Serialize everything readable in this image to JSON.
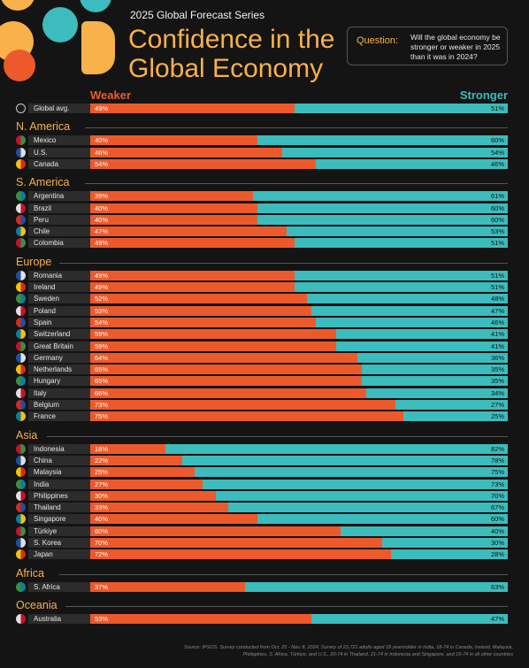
{
  "header": {
    "series": "2025 Global Forecast Series",
    "title_line1": "Confidence in the",
    "title_line2": "Global Economy",
    "question_label": "Question:",
    "question_text": "Will the global economy be stronger or weaker in 2025 than it was in 2024?"
  },
  "legend": {
    "weaker": "Weaker",
    "stronger": "Stronger"
  },
  "colors": {
    "weaker": "#ec5a2c",
    "stronger": "#3cbcbc",
    "accent": "#f9b14a",
    "background": "#141414"
  },
  "source": "Source: IPSOS. Survey conducted from Oct. 25 - Nov. 8, 2024. Survey of 23,721 adults aged 18 years/older in India, 18-74 in Canada, Ireland, Malaysia, Philippines, S. Africa, Türkiye, and U.S., 20-74 in Thailand, 21-74 in Indonesia and Singapore, and 16-74 in all other countries",
  "chart_data": {
    "type": "bar",
    "stacked": true,
    "orientation": "horizontal",
    "series": [
      {
        "name": "Weaker",
        "color": "#ec5a2c"
      },
      {
        "name": "Stronger",
        "color": "#3cbcbc"
      }
    ],
    "groups": [
      {
        "region": "",
        "rows": [
          {
            "country": "Global avg.",
            "icon": "globe-icon",
            "weaker": 49,
            "stronger": 51
          }
        ]
      },
      {
        "region": "N. America",
        "rows": [
          {
            "country": "Mexico",
            "weaker": 40,
            "stronger": 60
          },
          {
            "country": "U.S.",
            "weaker": 46,
            "stronger": 54
          },
          {
            "country": "Canada",
            "weaker": 54,
            "stronger": 46
          }
        ]
      },
      {
        "region": "S. America",
        "rows": [
          {
            "country": "Argentina",
            "weaker": 39,
            "stronger": 61
          },
          {
            "country": "Brazil",
            "weaker": 40,
            "stronger": 60
          },
          {
            "country": "Peru",
            "weaker": 40,
            "stronger": 60
          },
          {
            "country": "Chile",
            "weaker": 47,
            "stronger": 53
          },
          {
            "country": "Colombia",
            "weaker": 49,
            "stronger": 51
          }
        ]
      },
      {
        "region": "Europe",
        "rows": [
          {
            "country": "Romania",
            "weaker": 49,
            "stronger": 51
          },
          {
            "country": "Ireland",
            "weaker": 49,
            "stronger": 51
          },
          {
            "country": "Sweden",
            "weaker": 52,
            "stronger": 48
          },
          {
            "country": "Poland",
            "weaker": 53,
            "stronger": 47
          },
          {
            "country": "Spain",
            "weaker": 54,
            "stronger": 46
          },
          {
            "country": "Switzerland",
            "weaker": 59,
            "stronger": 41
          },
          {
            "country": "Great Britain",
            "weaker": 59,
            "stronger": 41
          },
          {
            "country": "Germany",
            "weaker": 64,
            "stronger": 36
          },
          {
            "country": "Netherlands",
            "weaker": 65,
            "stronger": 35
          },
          {
            "country": "Hungary",
            "weaker": 65,
            "stronger": 35
          },
          {
            "country": "Italy",
            "weaker": 66,
            "stronger": 34
          },
          {
            "country": "Belgium",
            "weaker": 73,
            "stronger": 27
          },
          {
            "country": "France",
            "weaker": 75,
            "stronger": 25
          }
        ]
      },
      {
        "region": "Asia",
        "rows": [
          {
            "country": "Indonesia",
            "weaker": 18,
            "stronger": 82
          },
          {
            "country": "China",
            "weaker": 22,
            "stronger": 78
          },
          {
            "country": "Malaysia",
            "weaker": 25,
            "stronger": 75
          },
          {
            "country": "India",
            "weaker": 27,
            "stronger": 73
          },
          {
            "country": "Philippines",
            "weaker": 30,
            "stronger": 70
          },
          {
            "country": "Thailand",
            "weaker": 33,
            "stronger": 67
          },
          {
            "country": "Singapore",
            "weaker": 40,
            "stronger": 60
          },
          {
            "country": "Türkiye",
            "weaker": 60,
            "stronger": 40
          },
          {
            "country": "S. Korea",
            "weaker": 70,
            "stronger": 30
          },
          {
            "country": "Japan",
            "weaker": 72,
            "stronger": 28
          }
        ]
      },
      {
        "region": "Africa",
        "rows": [
          {
            "country": "S. Africa",
            "weaker": 37,
            "stronger": 63
          }
        ]
      },
      {
        "region": "Oceania",
        "rows": [
          {
            "country": "Australia",
            "weaker": 53,
            "stronger": 47
          }
        ]
      }
    ],
    "xlim": [
      0,
      100
    ],
    "unit": "%"
  }
}
